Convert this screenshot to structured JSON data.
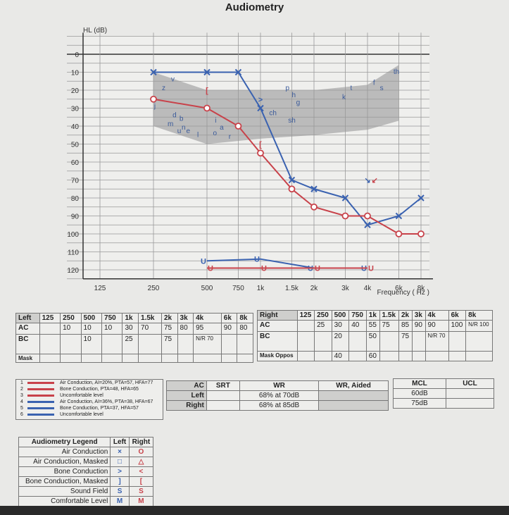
{
  "title": "Audiometry",
  "chart_data": {
    "type": "line",
    "ylabel": "HL (dB)",
    "xlabel": "Frequency ( Hz )",
    "x_scale": "log",
    "y_inverted": true,
    "ylim": [
      -10,
      125
    ],
    "yticks": [
      0,
      10,
      20,
      30,
      40,
      50,
      60,
      70,
      80,
      90,
      100,
      110,
      120
    ],
    "xticks": [
      {
        "v": 125,
        "l": "125"
      },
      {
        "v": 250,
        "l": "250"
      },
      {
        "v": 500,
        "l": "500"
      },
      {
        "v": 750,
        "l": "750"
      },
      {
        "v": 1000,
        "l": "1k"
      },
      {
        "v": 1500,
        "l": "1.5k"
      },
      {
        "v": 2000,
        "l": "2k"
      },
      {
        "v": 3000,
        "l": "3k"
      },
      {
        "v": 4000,
        "l": "4k"
      },
      {
        "v": 6000,
        "l": "6k"
      },
      {
        "v": 8000,
        "l": "8k"
      }
    ],
    "grid": true,
    "series": [
      {
        "key": "left_ac",
        "color": "#3a62b0",
        "marker": "x",
        "x": [
          250,
          500,
          750,
          1000,
          1500,
          2000,
          3000,
          4000,
          6000,
          8000
        ],
        "y": [
          10,
          10,
          10,
          30,
          70,
          75,
          80,
          95,
          90,
          80
        ]
      },
      {
        "key": "right_ac",
        "color": "#c8424a",
        "marker": "o",
        "x": [
          250,
          500,
          750,
          1000,
          1500,
          2000,
          3000,
          4000,
          6000,
          8000
        ],
        "y": [
          25,
          30,
          40,
          55,
          75,
          85,
          90,
          90,
          100,
          100
        ]
      },
      {
        "key": "left_ucl",
        "color": "#3a62b0",
        "marker": "U",
        "x": [
          500,
          1000,
          2000,
          4000
        ],
        "y": [
          115,
          114,
          119,
          119
        ]
      },
      {
        "key": "right_ucl",
        "color": "#c8424a",
        "marker": "U",
        "x": [
          500,
          1000,
          2000,
          4000
        ],
        "y": [
          119,
          119,
          119,
          119
        ]
      }
    ],
    "bone_markers": [
      {
        "color": "#3a62b0",
        "symbol": ">",
        "x": 1000,
        "y": 25
      },
      {
        "color": "#3a62b0",
        "symbol": "□",
        "x": 2000,
        "y": 75
      },
      {
        "color": "#3a62b0",
        "symbol": "↘",
        "x": 4000,
        "y": 70
      },
      {
        "color": "#c8424a",
        "symbol": "[",
        "x": 500,
        "y": 20
      },
      {
        "color": "#c8424a",
        "symbol": "[",
        "x": 1000,
        "y": 50
      },
      {
        "color": "#c8424a",
        "symbol": "↙",
        "x": 4000,
        "y": 70
      }
    ],
    "speech_banana": {
      "color": "#a9a9a9",
      "upper": [
        [
          250,
          10
        ],
        [
          500,
          20
        ],
        [
          1000,
          20
        ],
        [
          2000,
          20
        ],
        [
          4000,
          17
        ],
        [
          6000,
          6
        ]
      ],
      "lower": [
        [
          6000,
          37
        ],
        [
          4000,
          42
        ],
        [
          2000,
          45
        ],
        [
          1000,
          47
        ],
        [
          500,
          50
        ],
        [
          250,
          40
        ]
      ]
    },
    "phonemes": [
      {
        "t": "v",
        "f": 314,
        "db": 15
      },
      {
        "t": "z",
        "f": 279,
        "db": 20
      },
      {
        "t": "j",
        "f": 252,
        "db": 30
      },
      {
        "t": "d",
        "f": 320,
        "db": 35
      },
      {
        "t": "b",
        "f": 350,
        "db": 37
      },
      {
        "t": "m",
        "f": 300,
        "db": 40
      },
      {
        "t": "u",
        "f": 340,
        "db": 44
      },
      {
        "t": "n",
        "f": 360,
        "db": 42
      },
      {
        "t": "e",
        "f": 376,
        "db": 44
      },
      {
        "t": "l",
        "f": 440,
        "db": 46
      },
      {
        "t": "i",
        "f": 554,
        "db": 38
      },
      {
        "t": "a",
        "f": 590,
        "db": 42
      },
      {
        "t": "o",
        "f": 540,
        "db": 45
      },
      {
        "t": "r",
        "f": 662,
        "db": 47
      },
      {
        "t": "p",
        "f": 1383,
        "db": 20
      },
      {
        "t": "h",
        "f": 1500,
        "db": 24
      },
      {
        "t": "g",
        "f": 1587,
        "db": 28
      },
      {
        "t": "ch",
        "f": 1120,
        "db": 34
      },
      {
        "t": "sh",
        "f": 1430,
        "db": 38
      },
      {
        "t": "k",
        "f": 2880,
        "db": 25
      },
      {
        "t": "t",
        "f": 3200,
        "db": 20
      },
      {
        "t": "f",
        "f": 4300,
        "db": 17
      },
      {
        "t": "s",
        "f": 4700,
        "db": 20
      },
      {
        "t": "th",
        "f": 5600,
        "db": 11
      }
    ]
  },
  "left_table": {
    "headers": [
      "Left",
      "125",
      "250",
      "500",
      "750",
      "1k",
      "1.5k",
      "2k",
      "3k",
      "4k",
      "6k",
      "8k"
    ],
    "ac": [
      "AC",
      "",
      "10",
      "10",
      "10",
      "30",
      "70",
      "75",
      "80",
      "95",
      "90",
      "80"
    ],
    "bc": [
      "BC",
      "",
      "",
      "10",
      "",
      "25",
      "",
      "75",
      "",
      "N/R 70",
      "",
      ""
    ],
    "mask": [
      "Mask",
      "",
      "",
      "",
      "",
      "",
      "",
      "",
      "",
      "",
      "",
      ""
    ]
  },
  "right_table": {
    "headers": [
      "Right",
      "125",
      "250",
      "500",
      "750",
      "1k",
      "1.5k",
      "2k",
      "3k",
      "4k",
      "6k",
      "8k"
    ],
    "ac": [
      "AC",
      "",
      "25",
      "30",
      "40",
      "55",
      "75",
      "85",
      "90",
      "90",
      "100",
      "N/R 100"
    ],
    "bc": [
      "BC",
      "",
      "",
      "20",
      "",
      "50",
      "",
      "75",
      "",
      "N/R 70",
      "",
      ""
    ],
    "mask": [
      "Mask Oppos",
      "",
      "",
      "40",
      "",
      "60",
      "",
      "",
      "",
      "",
      "",
      ""
    ]
  },
  "series_legend": [
    {
      "num": "1",
      "color": "#c8424a",
      "label": "Air Conduction, AI=20%, PTA=57, HFA=77"
    },
    {
      "num": "2",
      "color": "#c8424a",
      "label": "Bone Conduction, PTA=48, HFA=65"
    },
    {
      "num": "3",
      "color": "#c8424a",
      "label": "Uncomfortable level"
    },
    {
      "num": "4",
      "color": "#3a62b0",
      "label": "Air Conduction, AI=36%, PTA=38, HFA=67"
    },
    {
      "num": "5",
      "color": "#3a62b0",
      "label": "Bone Conduction, PTA=37, HFA=57"
    },
    {
      "num": "6",
      "color": "#3a62b0",
      "label": "Uncomfortable level"
    }
  ],
  "speech_table": {
    "headers": [
      "AC",
      "SRT",
      "WR",
      "WR, Aided"
    ],
    "rows": [
      [
        "Left",
        "",
        "68% at 70dB",
        ""
      ],
      [
        "Right",
        "",
        "68% at 85dB",
        ""
      ]
    ]
  },
  "mcl_table": {
    "headers": [
      "MCL",
      "UCL"
    ],
    "rows": [
      [
        "60dB",
        ""
      ],
      [
        "75dB",
        ""
      ]
    ]
  },
  "symbol_legend": {
    "headers": [
      "Audiometry Legend",
      "Left",
      "Right"
    ],
    "rows": [
      [
        "Air Conduction",
        "×",
        "O"
      ],
      [
        "Air Conduction, Masked",
        "□",
        "△"
      ],
      [
        "Bone Conduction",
        ">",
        "<"
      ],
      [
        "Bone Conduction, Masked",
        "]",
        "["
      ],
      [
        "Sound Field",
        "S",
        "S"
      ],
      [
        "Comfortable Level",
        "M",
        "M"
      ]
    ]
  }
}
